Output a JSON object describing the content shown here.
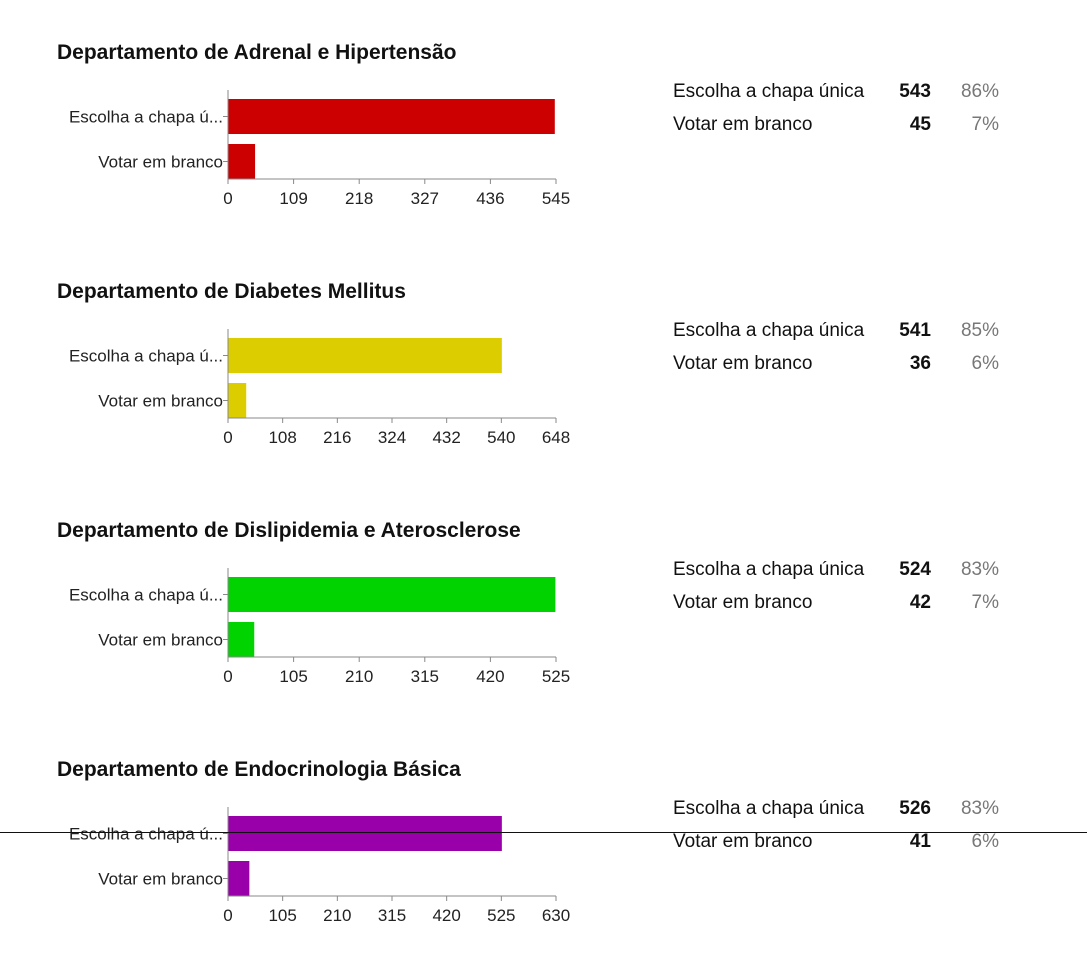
{
  "chart_data": [
    {
      "type": "bar",
      "orientation": "horizontal",
      "title": "Departamento de Adrenal e Hipertensão",
      "categories": [
        "Escolha a chapa ú...",
        "Votar em branco"
      ],
      "values": [
        543,
        45
      ],
      "xlim": [
        0,
        545
      ],
      "xticks": [
        "0",
        "109",
        "218",
        "327",
        "436",
        "545"
      ],
      "color": "#cc0000",
      "summary": [
        {
          "label": "Escolha a chapa única",
          "count": "543",
          "pct": "86%"
        },
        {
          "label": "Votar em branco",
          "count": "45",
          "pct": "7%"
        }
      ]
    },
    {
      "type": "bar",
      "orientation": "horizontal",
      "title": "Departamento de Diabetes Mellitus",
      "categories": [
        "Escolha a chapa ú...",
        "Votar em branco"
      ],
      "values": [
        541,
        36
      ],
      "xlim": [
        0,
        648
      ],
      "xticks": [
        "0",
        "108",
        "216",
        "324",
        "432",
        "540",
        "648"
      ],
      "color": "#dccd00",
      "summary": [
        {
          "label": "Escolha a chapa única",
          "count": "541",
          "pct": "85%"
        },
        {
          "label": "Votar em branco",
          "count": "36",
          "pct": "6%"
        }
      ]
    },
    {
      "type": "bar",
      "orientation": "horizontal",
      "title": "Departamento de Dislipidemia e Aterosclerose",
      "categories": [
        "Escolha a chapa ú...",
        "Votar em branco"
      ],
      "values": [
        524,
        42
      ],
      "xlim": [
        0,
        525
      ],
      "xticks": [
        "0",
        "105",
        "210",
        "315",
        "420",
        "525"
      ],
      "color": "#00d300",
      "summary": [
        {
          "label": "Escolha a chapa única",
          "count": "524",
          "pct": "83%"
        },
        {
          "label": "Votar em branco",
          "count": "42",
          "pct": "7%"
        }
      ]
    },
    {
      "type": "bar",
      "orientation": "horizontal",
      "title": "Departamento de Endocrinologia Básica",
      "categories": [
        "Escolha a chapa ú...",
        "Votar em branco"
      ],
      "values": [
        526,
        41
      ],
      "xlim": [
        0,
        630
      ],
      "xticks": [
        "0",
        "105",
        "210",
        "315",
        "420",
        "525",
        "630"
      ],
      "color": "#9900aa",
      "summary": [
        {
          "label": "Escolha a chapa única",
          "count": "526",
          "pct": "83%"
        },
        {
          "label": "Votar em branco",
          "count": "41",
          "pct": "6%"
        }
      ]
    }
  ]
}
